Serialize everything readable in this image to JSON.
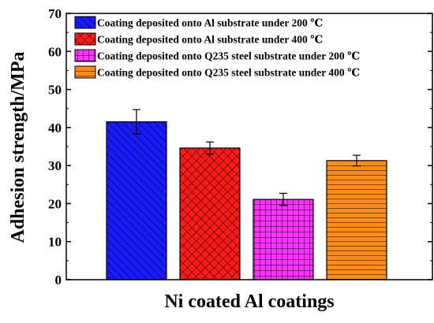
{
  "chart_data": {
    "type": "bar",
    "title": "",
    "xlabel": "Ni coated Al coatings",
    "ylabel": "Adhesion strength/MPa",
    "ylim": [
      0,
      70
    ],
    "yticks": [
      0,
      10,
      20,
      30,
      40,
      50,
      60,
      70
    ],
    "grid": false,
    "legend_position": "top",
    "series": [
      {
        "name": "Coating deposited onto Al substrate under 200 ℃",
        "value": 41.5,
        "error": 3.2,
        "color": "#1a1aff",
        "pattern": "diagonal-hatch"
      },
      {
        "name": "Coating deposited onto Al substrate under 400 ℃",
        "value": 34.6,
        "error": 1.6,
        "color": "#ff1a1a",
        "pattern": "cross-hatch"
      },
      {
        "name": "Coating deposited onto Q235 steel substrate under 200 ℃",
        "value": 21.1,
        "error": 1.6,
        "color": "#ff33ff",
        "pattern": "grid"
      },
      {
        "name": "Coating deposited onto Q235 steel substrate under 400 ℃",
        "value": 31.3,
        "error": 1.4,
        "color": "#ff8c1a",
        "pattern": "horizontal-lines"
      }
    ]
  }
}
